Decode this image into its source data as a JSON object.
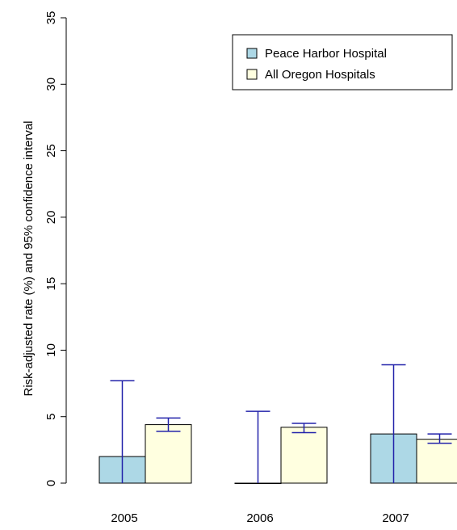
{
  "chart_data": {
    "type": "bar",
    "categories": [
      "2005",
      "2006",
      "2007"
    ],
    "series": [
      {
        "name": "Peace Harbor Hospital",
        "color": "#add8e6",
        "values": [
          2.0,
          0.0,
          3.7
        ],
        "ci_low": [
          0.0,
          0.0,
          0.0
        ],
        "ci_high": [
          7.7,
          5.4,
          8.9
        ]
      },
      {
        "name": "All Oregon Hospitals",
        "color": "#ffffe0",
        "values": [
          4.4,
          4.2,
          3.3
        ],
        "ci_low": [
          3.9,
          3.8,
          3.0
        ],
        "ci_high": [
          4.9,
          4.5,
          3.7
        ]
      }
    ],
    "ylabel": "Risk-adjusted rate (%) and 95% confidence interval",
    "xlabel": "",
    "title": "",
    "ylim": [
      0,
      35
    ],
    "yticks": [
      "0",
      "5",
      "10",
      "15",
      "20",
      "25",
      "30",
      "35"
    ],
    "error_bar_color": "#2222aa",
    "legend_position": "top-right",
    "grid": false
  }
}
